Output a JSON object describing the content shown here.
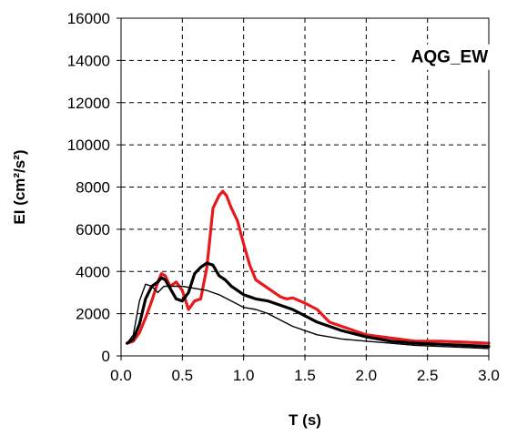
{
  "chart_data": {
    "type": "line",
    "title": "",
    "annotation": "AQG_EW",
    "xlabel": "T (s)",
    "ylabel": "EI (cm²/s²)",
    "xlim": [
      0,
      3
    ],
    "ylim": [
      0,
      16000
    ],
    "x_ticks": [
      "0.0",
      "0.5",
      "1.0",
      "1.5",
      "2.0",
      "2.5",
      "3.0"
    ],
    "y_ticks": [
      "0",
      "2000",
      "4000",
      "6000",
      "8000",
      "10000",
      "12000",
      "14000",
      "16000"
    ],
    "grid": true,
    "legend": "none",
    "series": [
      {
        "color": "#e8191d",
        "style": "thick",
        "x": [
          0.05,
          0.1,
          0.15,
          0.2,
          0.25,
          0.3,
          0.33,
          0.36,
          0.4,
          0.45,
          0.5,
          0.55,
          0.6,
          0.65,
          0.7,
          0.75,
          0.8,
          0.83,
          0.86,
          0.9,
          0.95,
          1.0,
          1.05,
          1.1,
          1.2,
          1.3,
          1.35,
          1.4,
          1.5,
          1.6,
          1.7,
          1.8,
          1.9,
          2.0,
          2.2,
          2.4,
          2.6,
          2.8,
          3.0
        ],
        "y": [
          600,
          700,
          1100,
          1800,
          2600,
          3500,
          3900,
          3800,
          3300,
          3500,
          3100,
          2200,
          2600,
          2700,
          4200,
          7000,
          7600,
          7800,
          7600,
          7000,
          6400,
          5300,
          4300,
          3600,
          3200,
          2800,
          2700,
          2750,
          2500,
          2200,
          1600,
          1400,
          1200,
          1000,
          850,
          700,
          700,
          650,
          600
        ]
      },
      {
        "color": "#000000",
        "style": "thick",
        "x": [
          0.05,
          0.1,
          0.15,
          0.2,
          0.25,
          0.3,
          0.33,
          0.36,
          0.4,
          0.45,
          0.5,
          0.55,
          0.6,
          0.65,
          0.7,
          0.75,
          0.8,
          0.85,
          0.9,
          1.0,
          1.1,
          1.2,
          1.3,
          1.4,
          1.5,
          1.6,
          1.7,
          1.8,
          2.0,
          2.2,
          2.4,
          2.6,
          2.8,
          3.0
        ],
        "y": [
          600,
          800,
          1500,
          2700,
          3300,
          3500,
          3700,
          3600,
          3200,
          2700,
          2600,
          3000,
          3900,
          4200,
          4400,
          4300,
          3800,
          3600,
          3300,
          2900,
          2700,
          2600,
          2400,
          2200,
          1900,
          1600,
          1400,
          1200,
          900,
          700,
          600,
          550,
          500,
          450
        ]
      },
      {
        "color": "#000000",
        "style": "thin",
        "x": [
          0.05,
          0.1,
          0.15,
          0.2,
          0.25,
          0.3,
          0.35,
          0.4,
          0.5,
          0.6,
          0.7,
          0.8,
          0.9,
          1.0,
          1.1,
          1.2,
          1.3,
          1.4,
          1.5,
          1.6,
          1.7,
          1.8,
          2.0,
          2.2,
          2.4,
          2.6,
          2.8,
          3.0
        ],
        "y": [
          600,
          1000,
          2600,
          3400,
          3300,
          3000,
          3300,
          3300,
          3300,
          3200,
          3100,
          2900,
          2600,
          2300,
          2200,
          2000,
          1700,
          1400,
          1200,
          1000,
          900,
          800,
          700,
          600,
          500,
          450,
          400,
          350
        ]
      }
    ]
  }
}
